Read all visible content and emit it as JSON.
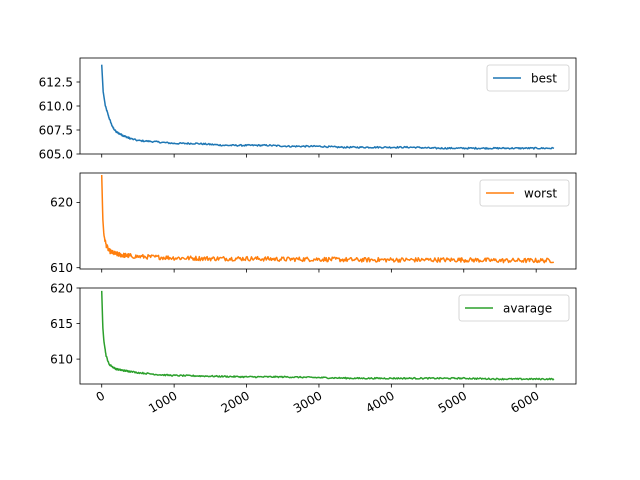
{
  "chart_data": [
    {
      "type": "line",
      "title": "",
      "xlabel": "",
      "ylabel": "",
      "xlim": [
        -300,
        6550
      ],
      "ylim": [
        605.0,
        615.0
      ],
      "yticks": [
        605.0,
        607.5,
        610.0,
        612.5
      ],
      "ytick_labels": [
        "605.0",
        "607.5",
        "610.0",
        "612.5"
      ],
      "xticks": [
        0,
        1000,
        2000,
        3000,
        4000,
        5000,
        6000
      ],
      "show_xtick_labels": false,
      "legend": "top-right",
      "series": [
        {
          "name": "best",
          "color": "#1f77b4",
          "x": [
            0,
            20,
            50,
            100,
            150,
            200,
            300,
            400,
            500,
            700,
            1000,
            1300,
            1500,
            1700,
            2000,
            2300,
            2600,
            3000,
            3300,
            3600,
            4000,
            4300,
            4600,
            5000,
            5300,
            5600,
            6000,
            6250
          ],
          "y": [
            614.3,
            611.5,
            610.0,
            608.8,
            607.8,
            607.3,
            606.9,
            606.6,
            606.4,
            606.3,
            606.1,
            606.1,
            606.0,
            605.9,
            605.9,
            605.9,
            605.8,
            605.8,
            605.7,
            605.7,
            605.7,
            605.7,
            605.6,
            605.6,
            605.6,
            605.6,
            605.6,
            605.6
          ],
          "noise": 0.08
        }
      ]
    },
    {
      "type": "line",
      "title": "",
      "xlabel": "",
      "ylabel": "",
      "xlim": [
        -300,
        6550
      ],
      "ylim": [
        609.8,
        624.5
      ],
      "yticks": [
        610,
        620
      ],
      "ytick_labels": [
        "610",
        "620"
      ],
      "xticks": [
        0,
        1000,
        2000,
        3000,
        4000,
        5000,
        6000
      ],
      "show_xtick_labels": false,
      "legend": "top-right",
      "series": [
        {
          "name": "worst",
          "color": "#ff7f0e",
          "x": [
            0,
            15,
            30,
            60,
            100,
            150,
            200,
            300,
            500,
            800,
            1000,
            1500,
            2000,
            2500,
            3000,
            3500,
            4000,
            4500,
            5000,
            5500,
            6000,
            6250
          ],
          "y": [
            624.2,
            617.5,
            615.0,
            613.5,
            612.6,
            612.3,
            612.1,
            611.9,
            611.7,
            611.6,
            611.5,
            611.4,
            611.4,
            611.3,
            611.3,
            611.2,
            611.2,
            611.2,
            611.2,
            611.1,
            611.1,
            611.1
          ],
          "noise": 0.35
        }
      ]
    },
    {
      "type": "line",
      "title": "",
      "xlabel": "",
      "ylabel": "",
      "xlim": [
        -300,
        6550
      ],
      "ylim": [
        606.5,
        620.0
      ],
      "yticks": [
        610,
        615,
        620
      ],
      "ytick_labels": [
        "610",
        "615",
        "620"
      ],
      "xticks": [
        0,
        1000,
        2000,
        3000,
        4000,
        5000,
        6000
      ],
      "xtick_labels": [
        "0",
        "1000",
        "2000",
        "3000",
        "4000",
        "5000",
        "6000"
      ],
      "show_xtick_labels": true,
      "legend": "top-right",
      "series": [
        {
          "name": "avarage",
          "color": "#2ca02c",
          "x": [
            0,
            15,
            30,
            60,
            100,
            150,
            200,
            300,
            500,
            800,
            1000,
            1500,
            2000,
            2500,
            3000,
            3500,
            4000,
            4500,
            5000,
            5500,
            6000,
            6250
          ],
          "y": [
            619.6,
            614.5,
            612.5,
            610.5,
            609.3,
            608.9,
            608.6,
            608.4,
            608.1,
            607.8,
            607.7,
            607.6,
            607.5,
            607.5,
            607.4,
            607.3,
            607.3,
            607.3,
            607.3,
            607.2,
            607.2,
            607.2
          ],
          "noise": 0.1
        }
      ]
    }
  ]
}
